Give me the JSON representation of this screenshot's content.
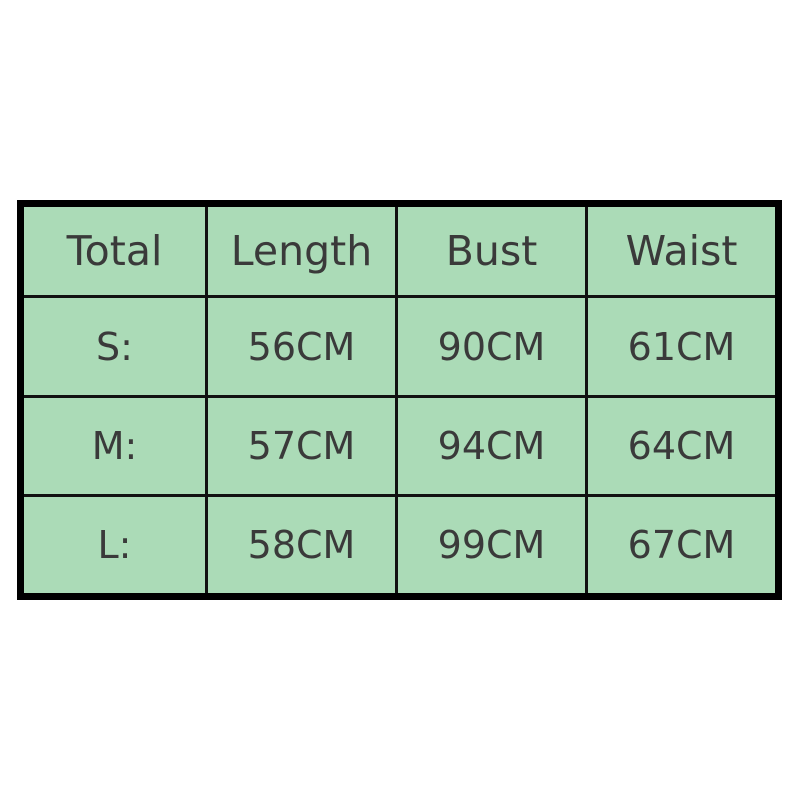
{
  "table": {
    "headers": [
      "Total",
      "Length",
      "Bust",
      "Waist"
    ],
    "rows": [
      [
        "S:",
        "56CM",
        "90CM",
        "61CM"
      ],
      [
        "M:",
        "57CM",
        "94CM",
        "64CM"
      ],
      [
        "L:",
        "58CM",
        "99CM",
        "67CM"
      ]
    ]
  },
  "colors": {
    "cell_background": "#abdbb7",
    "text": "#3a3a3a",
    "border": "#000000"
  }
}
